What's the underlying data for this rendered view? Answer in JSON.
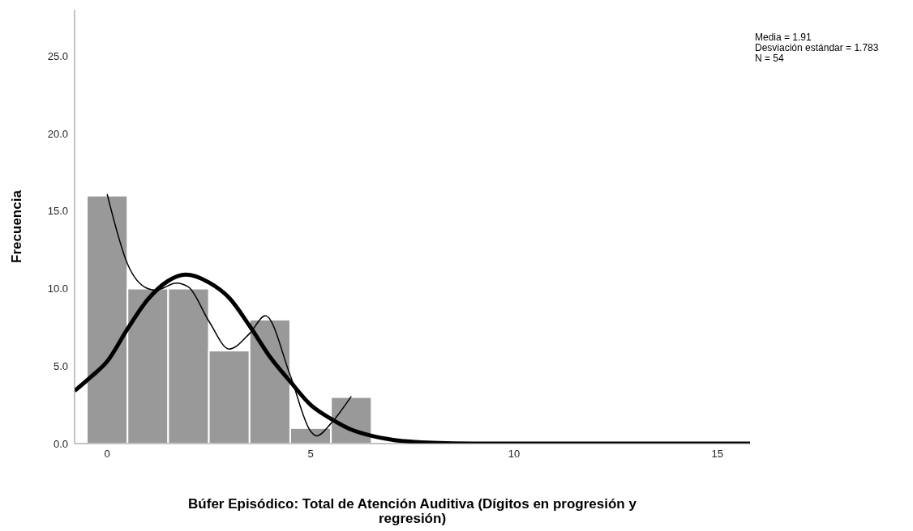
{
  "chart_data": {
    "type": "histogram",
    "xlabel": "Búfer Episódico: Total de Atención Auditiva (Dígitos en progresión y regresión)",
    "ylabel": "Frecuencia",
    "bins": [
      -0.5,
      0.5,
      1.5,
      2.5,
      3.5,
      4.5,
      5.5,
      6.5
    ],
    "values": [
      16,
      10,
      10,
      6,
      8,
      1,
      3
    ],
    "color": "#999999",
    "series": [
      {
        "type": "line",
        "color": "#000000",
        "x": [
          -0.8,
          -0.4,
          0,
          0.5,
          1,
          1.5,
          1.93,
          2.5,
          3,
          3.5,
          4,
          4.5,
          5,
          5.5,
          6,
          6.5,
          7,
          8,
          9,
          12,
          15.8
        ],
        "values": [
          3.4,
          4.3,
          5.3,
          7.4,
          9.3,
          10.5,
          10.9,
          10.4,
          9.4,
          7.6,
          5.6,
          4.0,
          2.5,
          1.6,
          0.9,
          0.5,
          0.25,
          0.05,
          0,
          0,
          0
        ]
      },
      {
        "type": "line",
        "color": "#000000",
        "x": [
          0,
          0.5,
          1,
          1.2,
          1.7,
          2,
          2.5,
          3,
          3.5,
          3.89,
          4.5,
          5,
          5.15,
          5.5,
          6
        ],
        "values": [
          16.1,
          11.6,
          10.0,
          9.9,
          10.35,
          10.1,
          7.9,
          6.1,
          7.1,
          8.25,
          4.4,
          0.8,
          0.5,
          1.3,
          3.05
        ]
      }
    ],
    "xlim": [
      -0.8,
      15.8
    ],
    "xticks": [
      0,
      5,
      10,
      15
    ],
    "ylim": [
      0,
      28
    ],
    "yticks": [
      {
        "value": 0,
        "label": "0.0"
      },
      {
        "value": 5,
        "label": "5.0"
      },
      {
        "value": 10,
        "label": "10.0"
      },
      {
        "value": 15,
        "label": "15.0"
      },
      {
        "value": 20,
        "label": "20.0"
      },
      {
        "value": 25,
        "label": "25.0"
      }
    ],
    "annotations": [
      "Media = 1.91",
      "Desviación estándar = 1.783",
      "N = 54"
    ]
  }
}
